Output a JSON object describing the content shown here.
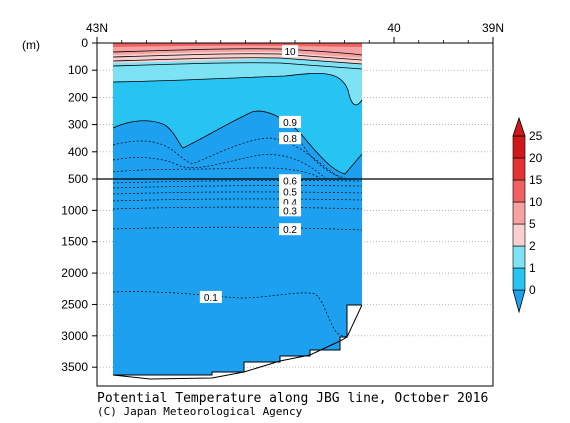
{
  "chart_data": {
    "type": "heatmap",
    "title": "Potential Temperature along JBG line, October 2016",
    "copyright": "(C) Japan Meteorological Agency",
    "ylabel": "(m)",
    "x_axis": {
      "range": [
        43,
        39
      ],
      "ticks": [
        {
          "value": 43,
          "label": "43N"
        },
        {
          "value": 40,
          "label": "40"
        },
        {
          "value": 39,
          "label": "39N"
        }
      ]
    },
    "y_axis": {
      "upper_range": [
        0,
        500
      ],
      "upper_ticks": [
        0,
        100,
        200,
        300,
        400,
        500
      ],
      "lower_range": [
        500,
        3800
      ],
      "lower_ticks": [
        1000,
        1500,
        2000,
        2500,
        3000,
        3500
      ],
      "break_at": 500,
      "grid": "dotted"
    },
    "section_extent_lat": [
      42.8,
      39.9
    ],
    "colorbar": {
      "levels": [
        "0",
        "1",
        "2",
        "5",
        "10",
        "15",
        "20",
        "25"
      ],
      "colors": [
        "#1ea0f0",
        "#27c3f3",
        "#7ee2f5",
        "#f9d0d0",
        "#f6a2a2",
        "#f06262",
        "#e63232",
        "#d01818"
      ],
      "extend": "both"
    },
    "contour_labels": [
      {
        "lat": 41.05,
        "depth": 30,
        "value": "10"
      },
      {
        "lat": 41.05,
        "depth": 290,
        "value": "0.9"
      },
      {
        "lat": 41.05,
        "depth": 350,
        "value": "0.8"
      },
      {
        "lat": 41.05,
        "depth": 520,
        "value": "0.6"
      },
      {
        "lat": 41.05,
        "depth": 700,
        "value": "0.5"
      },
      {
        "lat": 41.05,
        "depth": 870,
        "value": "0.4"
      },
      {
        "lat": 41.05,
        "depth": 1000,
        "value": "0.3"
      },
      {
        "lat": 41.05,
        "depth": 1300,
        "value": "0.2"
      },
      {
        "lat": 41.85,
        "depth": 2380,
        "value": "0.1"
      }
    ]
  }
}
